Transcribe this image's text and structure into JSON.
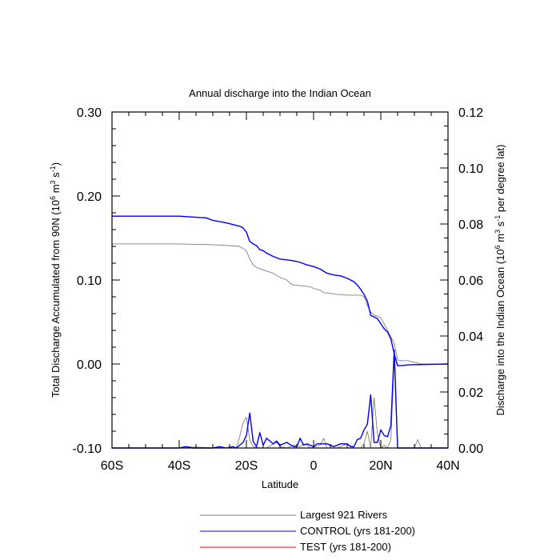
{
  "chart_data": {
    "type": "line",
    "title": "Annual discharge into the Indian Ocean",
    "xlabel": "Latitude",
    "ylabel_left": "Total Discharge Accumulated from 90N (10^6 m^3 s^-1)",
    "ylabel_right": "Discharge into the Indian Ocean (10^6 m^3 s^-1 per degree lat)",
    "xlim": [
      -60,
      40
    ],
    "ylim_left": [
      -0.1,
      0.3
    ],
    "ylim_right": [
      0.0,
      0.12
    ],
    "x_ticks": [
      {
        "value": -60,
        "label": "60S"
      },
      {
        "value": -40,
        "label": "40S"
      },
      {
        "value": -20,
        "label": "20S"
      },
      {
        "value": 0,
        "label": "0"
      },
      {
        "value": 20,
        "label": "20N"
      },
      {
        "value": 40,
        "label": "40N"
      }
    ],
    "y_ticks_left": [
      {
        "value": 0.3,
        "label": "0.30"
      },
      {
        "value": 0.2,
        "label": "0.20"
      },
      {
        "value": 0.1,
        "label": "0.10"
      },
      {
        "value": 0.0,
        "label": "0.00"
      },
      {
        "value": -0.1,
        "label": "-0.10"
      }
    ],
    "y_ticks_right": [
      {
        "value": 0.12,
        "label": "0.12"
      },
      {
        "value": 0.1,
        "label": "0.10"
      },
      {
        "value": 0.08,
        "label": "0.08"
      },
      {
        "value": 0.06,
        "label": "0.06"
      },
      {
        "value": 0.04,
        "label": "0.04"
      },
      {
        "value": 0.02,
        "label": "0.02"
      },
      {
        "value": 0.0,
        "label": "0.00"
      }
    ],
    "series": [
      {
        "name": "Largest 921 Rivers",
        "color": "#808080",
        "cumulative": [
          [
            -60,
            0.143
          ],
          [
            -40,
            0.143
          ],
          [
            -30,
            0.142
          ],
          [
            -25,
            0.141
          ],
          [
            -22,
            0.14
          ],
          [
            -20,
            0.135
          ],
          [
            -19,
            0.125
          ],
          [
            -18,
            0.118
          ],
          [
            -17,
            0.115
          ],
          [
            -15,
            0.112
          ],
          [
            -12,
            0.108
          ],
          [
            -10,
            0.103
          ],
          [
            -8,
            0.1
          ],
          [
            -7,
            0.096
          ],
          [
            -6,
            0.094
          ],
          [
            -3,
            0.093
          ],
          [
            -1,
            0.092
          ],
          [
            0,
            0.09
          ],
          [
            2,
            0.088
          ],
          [
            3,
            0.085
          ],
          [
            5,
            0.084
          ],
          [
            7,
            0.083
          ],
          [
            10,
            0.082
          ],
          [
            14,
            0.082
          ],
          [
            15,
            0.08
          ],
          [
            16,
            0.07
          ],
          [
            17,
            0.062
          ],
          [
            18,
            0.058
          ],
          [
            19,
            0.057
          ],
          [
            20,
            0.055
          ],
          [
            21,
            0.048
          ],
          [
            22,
            0.04
          ],
          [
            23,
            0.032
          ],
          [
            24,
            0.025
          ],
          [
            25,
            0.005
          ],
          [
            26,
            0.004
          ],
          [
            28,
            0.004
          ],
          [
            29,
            0.003
          ],
          [
            30,
            0.002
          ],
          [
            31,
            0.001
          ],
          [
            32,
            0.0
          ],
          [
            40,
            0.0
          ]
        ],
        "per_degree": [
          [
            -60,
            0.0
          ],
          [
            -40,
            0.0
          ],
          [
            -38,
            0.0005
          ],
          [
            -30,
            0.0
          ],
          [
            -28,
            0.0005
          ],
          [
            -26,
            0.0
          ],
          [
            -23,
            0.0
          ],
          [
            -22,
            0.004
          ],
          [
            -21,
            0.009
          ],
          [
            -20,
            0.011
          ],
          [
            -19,
            0.003
          ],
          [
            -18,
            0.0005
          ],
          [
            -16,
            0.0
          ],
          [
            -14,
            0.0
          ],
          [
            -12,
            0.0015
          ],
          [
            -11,
            0.002
          ],
          [
            -10,
            0.0005
          ],
          [
            -8,
            0.0
          ],
          [
            -6,
            0.001
          ],
          [
            -4,
            0.0005
          ],
          [
            -3,
            0.0015
          ],
          [
            -2,
            0.001
          ],
          [
            -1,
            0.0
          ],
          [
            2,
            0.001
          ],
          [
            3,
            0.0035
          ],
          [
            4,
            0.0
          ],
          [
            7,
            0.0
          ],
          [
            8,
            0.0005
          ],
          [
            10,
            0.0015
          ],
          [
            12,
            0.0
          ],
          [
            14,
            0.0
          ],
          [
            15,
            0.0015
          ],
          [
            16,
            0.006
          ],
          [
            17,
            0.0
          ],
          [
            18,
            0.018
          ],
          [
            19,
            0.005
          ],
          [
            20,
            0.0
          ],
          [
            21,
            0.001
          ],
          [
            22,
            0.0
          ],
          [
            23,
            0.003
          ],
          [
            24,
            0.032
          ],
          [
            25,
            0.0
          ],
          [
            30,
            0.0
          ],
          [
            31,
            0.003
          ],
          [
            32,
            0.0
          ],
          [
            40,
            0.0
          ]
        ]
      },
      {
        "name": "CONTROL (yrs 181-200)",
        "color": "#0000ff",
        "cumulative": [
          [
            -60,
            0.176
          ],
          [
            -40,
            0.176
          ],
          [
            -36,
            0.175
          ],
          [
            -32,
            0.174
          ],
          [
            -30,
            0.171
          ],
          [
            -26,
            0.168
          ],
          [
            -24,
            0.166
          ],
          [
            -22,
            0.164
          ],
          [
            -21,
            0.162
          ],
          [
            -20,
            0.157
          ],
          [
            -19,
            0.146
          ],
          [
            -18,
            0.143
          ],
          [
            -17,
            0.141
          ],
          [
            -16,
            0.136
          ],
          [
            -15,
            0.135
          ],
          [
            -14,
            0.132
          ],
          [
            -12,
            0.128
          ],
          [
            -10,
            0.125
          ],
          [
            -8,
            0.124
          ],
          [
            -6,
            0.123
          ],
          [
            -4,
            0.121
          ],
          [
            -2,
            0.118
          ],
          [
            0,
            0.116
          ],
          [
            2,
            0.113
          ],
          [
            4,
            0.108
          ],
          [
            6,
            0.106
          ],
          [
            8,
            0.105
          ],
          [
            10,
            0.102
          ],
          [
            12,
            0.098
          ],
          [
            13,
            0.094
          ],
          [
            14,
            0.089
          ],
          [
            15,
            0.083
          ],
          [
            16,
            0.075
          ],
          [
            17,
            0.058
          ],
          [
            18,
            0.056
          ],
          [
            19,
            0.054
          ],
          [
            20,
            0.048
          ],
          [
            21,
            0.042
          ],
          [
            22,
            0.038
          ],
          [
            23,
            0.03
          ],
          [
            24,
            0.012
          ],
          [
            25,
            -0.002
          ],
          [
            26,
            -0.002
          ],
          [
            28,
            -0.001
          ],
          [
            40,
            0.0
          ]
        ],
        "per_degree": [
          [
            -60,
            0.0
          ],
          [
            -40,
            0.0
          ],
          [
            -38,
            0.0005
          ],
          [
            -36,
            0.0
          ],
          [
            -30,
            0.0
          ],
          [
            -28,
            0.0005
          ],
          [
            -26,
            0.0
          ],
          [
            -24,
            0.0005
          ],
          [
            -23,
            0.0
          ],
          [
            -21,
            0.002
          ],
          [
            -20,
            0.0045
          ],
          [
            -19,
            0.0125
          ],
          [
            -18,
            0.0025
          ],
          [
            -17,
            0.0005
          ],
          [
            -16,
            0.0055
          ],
          [
            -15,
            0.001
          ],
          [
            -14,
            0.0035
          ],
          [
            -12,
            0.0015
          ],
          [
            -11,
            0.0025
          ],
          [
            -10,
            0.001
          ],
          [
            -8,
            0.002
          ],
          [
            -6,
            0.0005
          ],
          [
            -5,
            0.0005
          ],
          [
            -4,
            0.0035
          ],
          [
            -3,
            0.001
          ],
          [
            -2,
            0.0015
          ],
          [
            0,
            0.0005
          ],
          [
            1,
            0.0015
          ],
          [
            2,
            0.0015
          ],
          [
            4,
            0.0015
          ],
          [
            6,
            0.0005
          ],
          [
            8,
            0.0015
          ],
          [
            10,
            0.0015
          ],
          [
            11,
            0.0005
          ],
          [
            12,
            0.0005
          ],
          [
            13,
            0.003
          ],
          [
            14,
            0.0035
          ],
          [
            15,
            0.0065
          ],
          [
            16,
            0.0085
          ],
          [
            17,
            0.019
          ],
          [
            18,
            0.002
          ],
          [
            19,
            0.002
          ],
          [
            20,
            0.0065
          ],
          [
            21,
            0.0045
          ],
          [
            22,
            0.004
          ],
          [
            23,
            0.008
          ],
          [
            24,
            0.035
          ],
          [
            25,
            0.0
          ],
          [
            27,
            0.0
          ],
          [
            40,
            0.0
          ]
        ]
      },
      {
        "name": "TEST (yrs 181-200)",
        "color": "#ff0000",
        "cumulative": [
          [
            -60,
            0.176
          ],
          [
            -40,
            0.176
          ],
          [
            -36,
            0.175
          ],
          [
            -32,
            0.174
          ],
          [
            -30,
            0.171
          ],
          [
            -26,
            0.168
          ],
          [
            -24,
            0.166
          ],
          [
            -22,
            0.164
          ],
          [
            -21,
            0.162
          ],
          [
            -20,
            0.157
          ],
          [
            -19,
            0.146
          ],
          [
            -18,
            0.143
          ],
          [
            -17,
            0.141
          ],
          [
            -16,
            0.136
          ],
          [
            -15,
            0.135
          ],
          [
            -14,
            0.132
          ],
          [
            -12,
            0.128
          ],
          [
            -10,
            0.125
          ],
          [
            -8,
            0.124
          ],
          [
            -6,
            0.123
          ],
          [
            -4,
            0.121
          ],
          [
            -2,
            0.118
          ],
          [
            0,
            0.116
          ],
          [
            2,
            0.113
          ],
          [
            4,
            0.108
          ],
          [
            6,
            0.106
          ],
          [
            8,
            0.105
          ],
          [
            10,
            0.102
          ],
          [
            12,
            0.098
          ],
          [
            13,
            0.094
          ],
          [
            14,
            0.089
          ],
          [
            15,
            0.083
          ],
          [
            16,
            0.075
          ],
          [
            17,
            0.058
          ],
          [
            18,
            0.056
          ],
          [
            19,
            0.054
          ],
          [
            20,
            0.048
          ],
          [
            21,
            0.042
          ],
          [
            22,
            0.038
          ],
          [
            23,
            0.03
          ],
          [
            24,
            0.012
          ],
          [
            25,
            -0.002
          ],
          [
            26,
            -0.002
          ],
          [
            28,
            -0.001
          ],
          [
            40,
            0.0
          ]
        ],
        "per_degree": [
          [
            -60,
            0.0
          ],
          [
            -40,
            0.0
          ],
          [
            -38,
            0.0005
          ],
          [
            -36,
            0.0
          ],
          [
            -30,
            0.0
          ],
          [
            -28,
            0.0005
          ],
          [
            -26,
            0.0
          ],
          [
            -24,
            0.0005
          ],
          [
            -23,
            0.0
          ],
          [
            -21,
            0.002
          ],
          [
            -20,
            0.0045
          ],
          [
            -19,
            0.0125
          ],
          [
            -18,
            0.0025
          ],
          [
            -17,
            0.0005
          ],
          [
            -16,
            0.0055
          ],
          [
            -15,
            0.001
          ],
          [
            -14,
            0.0035
          ],
          [
            -12,
            0.0015
          ],
          [
            -11,
            0.0025
          ],
          [
            -10,
            0.001
          ],
          [
            -8,
            0.002
          ],
          [
            -6,
            0.0005
          ],
          [
            -5,
            0.0005
          ],
          [
            -4,
            0.0035
          ],
          [
            -3,
            0.001
          ],
          [
            -2,
            0.0015
          ],
          [
            0,
            0.0005
          ],
          [
            1,
            0.0015
          ],
          [
            2,
            0.0015
          ],
          [
            4,
            0.0015
          ],
          [
            6,
            0.0005
          ],
          [
            8,
            0.0015
          ],
          [
            10,
            0.0015
          ],
          [
            11,
            0.0005
          ],
          [
            12,
            0.0005
          ],
          [
            13,
            0.003
          ],
          [
            14,
            0.0035
          ],
          [
            15,
            0.0065
          ],
          [
            16,
            0.0085
          ],
          [
            17,
            0.019
          ],
          [
            18,
            0.002
          ],
          [
            19,
            0.002
          ],
          [
            20,
            0.0065
          ],
          [
            21,
            0.0045
          ],
          [
            22,
            0.004
          ],
          [
            23,
            0.008
          ],
          [
            24,
            0.035
          ],
          [
            25,
            0.0
          ],
          [
            27,
            0.0
          ],
          [
            40,
            0.0
          ]
        ]
      }
    ],
    "draw_order": [
      "TEST (yrs 181-200)",
      "Largest 921 Rivers",
      "CONTROL (yrs 181-200)"
    ]
  }
}
